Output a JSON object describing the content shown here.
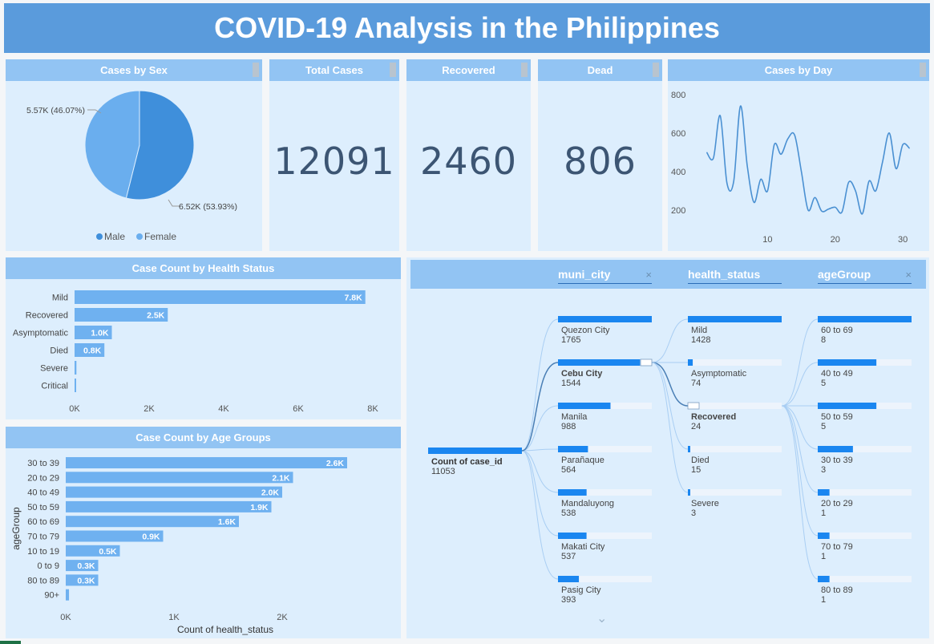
{
  "page_title": "COVID-19 Analysis in the Philippines",
  "sex_panel": {
    "title": "Cases by Sex",
    "legend": [
      {
        "label": "Male",
        "color": "#3f8fdb"
      },
      {
        "label": "Female",
        "color": "#6aaeee"
      }
    ],
    "slice_labels": [
      "6.52K (53.93%)",
      "5.57K (46.07%)"
    ]
  },
  "kpis": {
    "total": {
      "title": "Total Cases",
      "value": "12091"
    },
    "recovered": {
      "title": "Recovered",
      "value": "2460"
    },
    "dead": {
      "title": "Dead",
      "value": "806"
    }
  },
  "day_panel": {
    "title": "Cases by Day"
  },
  "health_panel": {
    "title": "Case Count by Health Status"
  },
  "age_panel": {
    "title": "Case Count by Age Groups"
  },
  "tree": {
    "headers": [
      "muni_city",
      "health_status",
      "ageGroup"
    ],
    "close_glyph": "×",
    "root": {
      "label": "Count of case_id",
      "value": "11053"
    },
    "level1": [
      {
        "label": "Quezon City",
        "value": "1765",
        "bold": false
      },
      {
        "label": "Cebu City",
        "value": "1544",
        "bold": true
      },
      {
        "label": "Manila",
        "value": "988",
        "bold": false
      },
      {
        "label": "Parañaque",
        "value": "564",
        "bold": false
      },
      {
        "label": "Mandaluyong",
        "value": "538",
        "bold": false
      },
      {
        "label": "Makati City",
        "value": "537",
        "bold": false
      },
      {
        "label": "Pasig City",
        "value": "393",
        "bold": false
      }
    ],
    "level2": [
      {
        "label": "Mild",
        "value": "1428",
        "bold": false
      },
      {
        "label": "Asymptomatic",
        "value": "74",
        "bold": false
      },
      {
        "label": "Recovered",
        "value": "24",
        "bold": true
      },
      {
        "label": "Died",
        "value": "15",
        "bold": false
      },
      {
        "label": "Severe",
        "value": "3",
        "bold": false
      }
    ],
    "level3": [
      {
        "label": "60 to 69",
        "value": "8",
        "bold": false
      },
      {
        "label": "40 to 49",
        "value": "5",
        "bold": false
      },
      {
        "label": "50 to 59",
        "value": "5",
        "bold": false
      },
      {
        "label": "30 to 39",
        "value": "3",
        "bold": false
      },
      {
        "label": "20 to 29",
        "value": "1",
        "bold": false
      },
      {
        "label": "70 to 79",
        "value": "1",
        "bold": false
      },
      {
        "label": "80 to 89",
        "value": "1",
        "bold": false
      }
    ],
    "expand_glyph": "⌄"
  },
  "chart_data": [
    {
      "type": "pie",
      "title": "Cases by Sex",
      "categories": [
        "Male",
        "Female"
      ],
      "values": [
        6520,
        5570
      ],
      "percent": [
        53.93,
        46.07
      ],
      "legend_position": "bottom"
    },
    {
      "type": "line",
      "title": "Cases by Day",
      "x": [
        1,
        2,
        3,
        4,
        5,
        6,
        7,
        8,
        9,
        10,
        11,
        12,
        13,
        14,
        15,
        16,
        17,
        18,
        19,
        20,
        21,
        22,
        23,
        24,
        25,
        26,
        27,
        28,
        29,
        30,
        31
      ],
      "values": [
        500,
        470,
        690,
        340,
        350,
        740,
        430,
        240,
        360,
        300,
        540,
        490,
        570,
        590,
        400,
        200,
        265,
        195,
        205,
        215,
        190,
        345,
        300,
        180,
        350,
        300,
        450,
        600,
        415,
        540,
        520
      ],
      "xticks": [
        10,
        20,
        30
      ],
      "yticks": [
        200,
        400,
        600,
        800
      ],
      "ylim": [
        100,
        820
      ],
      "xlim": [
        0,
        32
      ]
    },
    {
      "type": "bar",
      "title": "Case Count by Health Status",
      "categories": [
        "Mild",
        "Recovered",
        "Asymptomatic",
        "Died",
        "Severe",
        "Critical"
      ],
      "values": [
        7800,
        2500,
        1000,
        800,
        50,
        20
      ],
      "data_labels": [
        "7.8K",
        "2.5K",
        "1.0K",
        "0.8K",
        "",
        ""
      ],
      "xticks": [
        "0K",
        "2K",
        "4K",
        "6K",
        "8K"
      ],
      "xlim": [
        0,
        8000
      ]
    },
    {
      "type": "bar",
      "title": "Case Count by Age Groups",
      "categories": [
        "30 to 39",
        "20 to 29",
        "40 to 49",
        "50 to 59",
        "60 to 69",
        "70 to 79",
        "10 to 19",
        "0 to 9",
        "80 to 89",
        "90+"
      ],
      "values": [
        2600,
        2100,
        2000,
        1900,
        1600,
        900,
        500,
        300,
        300,
        30
      ],
      "data_labels": [
        "2.6K",
        "2.1K",
        "2.0K",
        "1.9K",
        "1.6K",
        "0.9K",
        "0.5K",
        "0.3K",
        "0.3K",
        ""
      ],
      "xticks": [
        "0K",
        "1K",
        "2K"
      ],
      "xlim": [
        0,
        2800
      ],
      "xlabel": "Count of health_status",
      "ylabel": "ageGroup"
    }
  ]
}
